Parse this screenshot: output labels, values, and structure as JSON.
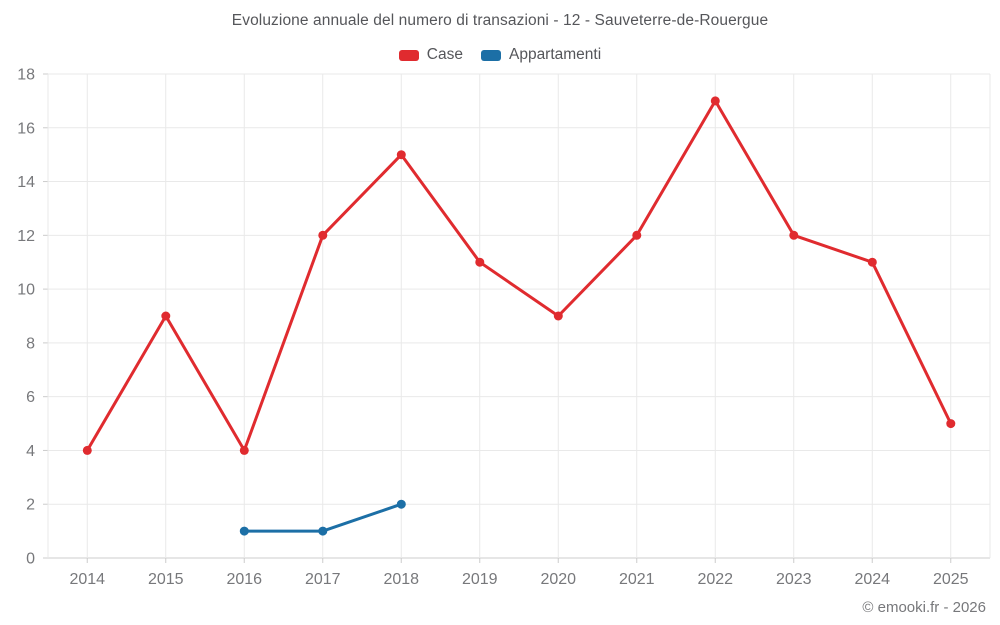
{
  "header": {
    "title": "Evoluzione annuale del numero di transazioni - 12 - Sauveterre-de-Rouergue"
  },
  "footer": {
    "copyright": "© emooki.fr - 2026"
  },
  "colors": {
    "case_red": "#e02b2f",
    "appartamenti_blue": "#1c6fa6",
    "grid": "#e9e9e9",
    "axis": "#cccccc",
    "tick_label": "#77787b",
    "title_text": "#55565a"
  },
  "chart_data": {
    "type": "line",
    "title": "Evoluzione annuale del numero di transazioni - 12 - Sauveterre-de-Rouergue",
    "categories": [
      "2014",
      "2015",
      "2016",
      "2017",
      "2018",
      "2019",
      "2020",
      "2021",
      "2022",
      "2023",
      "2024",
      "2025"
    ],
    "series": [
      {
        "name": "Case",
        "color": "#e02b2f",
        "values": [
          4,
          9,
          4,
          12,
          15,
          11,
          9,
          12,
          17,
          12,
          11,
          5
        ]
      },
      {
        "name": "Appartamenti",
        "color": "#1c6fa6",
        "values": [
          null,
          null,
          1,
          1,
          2,
          null,
          null,
          null,
          null,
          null,
          null,
          null
        ]
      }
    ],
    "xlabel": "",
    "ylabel": "",
    "ylim": [
      0,
      18
    ],
    "ytick_step": 2,
    "grid": true,
    "legend_position": "top"
  }
}
